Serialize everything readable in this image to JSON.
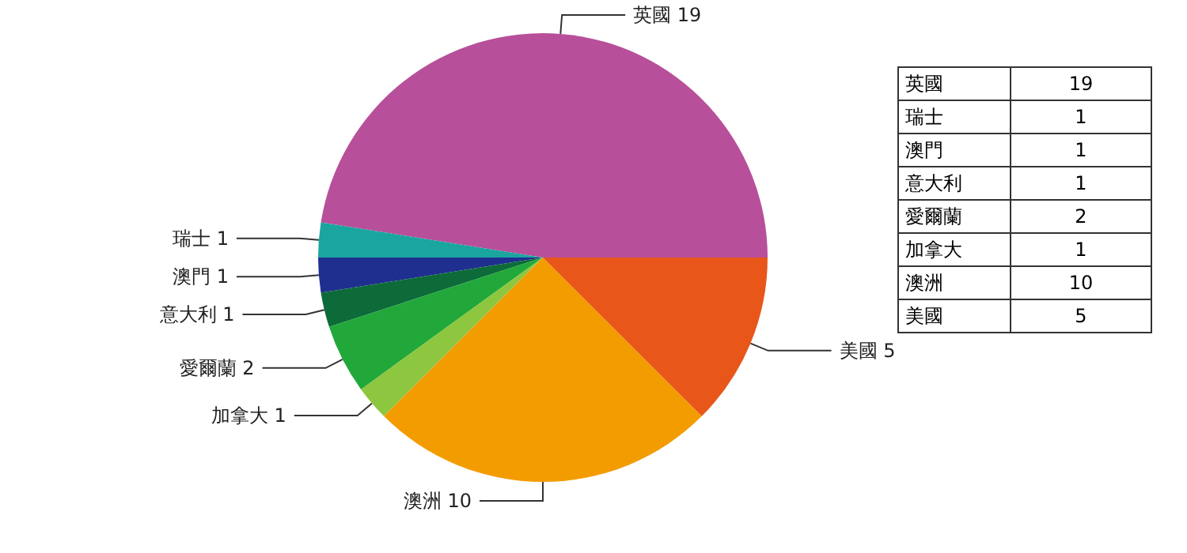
{
  "chart_data": [
    {
      "type": "pie",
      "categories": [
        "英國",
        "瑞士",
        "澳門",
        "意大利",
        "愛爾蘭",
        "加拿大",
        "澳洲",
        "美國"
      ],
      "values": [
        19,
        1,
        1,
        1,
        2,
        1,
        10,
        5
      ],
      "colors": [
        "#b84f9a",
        "#1aa5a0",
        "#1f2f8f",
        "#0d6b3a",
        "#22a83a",
        "#8dc63f",
        "#f39c00",
        "#e8561a"
      ],
      "data_labels": true,
      "legend": false
    },
    {
      "type": "other",
      "categories": [
        "英國",
        "瑞士",
        "澳門",
        "意大利",
        "愛爾蘭",
        "加拿大",
        "澳洲",
        "美國"
      ],
      "values": [
        19,
        1,
        1,
        1,
        2,
        1,
        10,
        5
      ],
      "data_labels": true
    }
  ]
}
